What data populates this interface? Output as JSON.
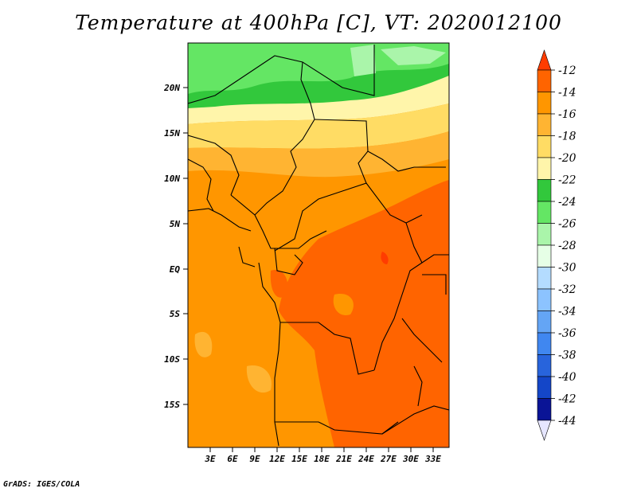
{
  "title": "Temperature at 400hPa [C], VT: 2020012100",
  "footer": "GrADS: IGES/COLA",
  "map": {
    "region": "Central Africa",
    "lat_ticks": [
      "20N",
      "15N",
      "10N",
      "5N",
      "EQ",
      "5S",
      "10S",
      "15S"
    ],
    "lon_ticks": [
      "3E",
      "6E",
      "9E",
      "12E",
      "15E",
      "18E",
      "21E",
      "24E",
      "27E",
      "30E",
      "33E"
    ]
  },
  "colorbar": {
    "labels": [
      "-12",
      "-14",
      "-16",
      "-18",
      "-20",
      "-22",
      "-24",
      "-26",
      "-28",
      "-30",
      "-32",
      "-34",
      "-36",
      "-38",
      "-40",
      "-42",
      "-44"
    ],
    "colors": [
      "#ff3c00",
      "#ff6400",
      "#ff9600",
      "#ffb432",
      "#ffdc64",
      "#fff5aa",
      "#32c83c",
      "#64e664",
      "#aaf5aa",
      "#e6ffe6",
      "#b4dcff",
      "#8cc3ff",
      "#64a5f5",
      "#4087f0",
      "#2864dc",
      "#1446c8",
      "#0a1496",
      "#e6e6ff"
    ]
  }
}
